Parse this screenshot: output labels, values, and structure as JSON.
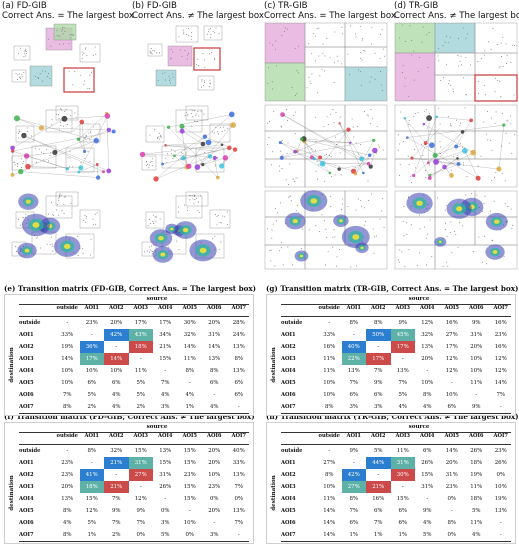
{
  "panels": [
    {
      "title": "(a) FD-GIB",
      "subtitle": "Correct Ans. = The largest box"
    },
    {
      "title": "(b) FD-GIB",
      "subtitle": "Correct Ans. ≠ The largest box"
    },
    {
      "title": "(c) TR-GIB",
      "subtitle": "Correct Ans. = The largest box"
    },
    {
      "title": "(d) TR-GIB",
      "subtitle": "Correct Ans. ≠ The largest box"
    }
  ],
  "matrix_labels": {
    "source": "source",
    "destination": "destination",
    "columns": [
      "outside",
      "AOI1",
      "AOI2",
      "AOI3",
      "AOI4",
      "AOI5",
      "AOI6",
      "AOI7"
    ],
    "rows": [
      "outside",
      "AOI1",
      "AOI2",
      "AOI3",
      "AOI4",
      "AOI5",
      "AOI6",
      "AOI7"
    ]
  },
  "colors": {
    "blue": "#2c7fd0",
    "teal": "#5eb1a6",
    "red": "#cc4a4a",
    "green_box": "#a9d8a3",
    "pink_box": "#e3a6d9",
    "cyan_box": "#97cfd3",
    "red_border": "#c8383d"
  },
  "matrices": [
    {
      "title": "(e) Transition matrix (FD-GIB, Correct Ans. = The largest box)",
      "rows": [
        [
          "-",
          "23%",
          "20%",
          "17%",
          "17%",
          "30%",
          "20%",
          "28%"
        ],
        [
          "33%",
          "-",
          "42%",
          "43%",
          "34%",
          "32%",
          "31%",
          "24%"
        ],
        [
          "19%",
          "36%",
          "-",
          "18%",
          "21%",
          "14%",
          "14%",
          "13%"
        ],
        [
          "14%",
          "17%",
          "14%",
          "-",
          "15%",
          "11%",
          "13%",
          "8%"
        ],
        [
          "10%",
          "10%",
          "10%",
          "11%",
          "-",
          "8%",
          "8%",
          "13%"
        ],
        [
          "10%",
          "6%",
          "6%",
          "5%",
          "7%",
          "-",
          "6%",
          "6%"
        ],
        [
          "7%",
          "5%",
          "4%",
          "5%",
          "4%",
          "4%",
          "-",
          "6%"
        ],
        [
          "8%",
          "2%",
          "4%",
          "2%",
          "3%",
          "1%",
          "4%",
          "-"
        ]
      ],
      "highlights": [
        [
          1,
          2,
          "blue"
        ],
        [
          1,
          3,
          "teal"
        ],
        [
          2,
          1,
          "blue"
        ],
        [
          2,
          3,
          "red"
        ],
        [
          3,
          1,
          "teal"
        ],
        [
          3,
          2,
          "red"
        ]
      ]
    },
    {
      "title": "(g) Transition matrix (TR-GIB, Correct Ans. = The largest box)",
      "rows": [
        [
          "-",
          "8%",
          "8%",
          "9%",
          "12%",
          "16%",
          "9%",
          "16%"
        ],
        [
          "33%",
          "-",
          "50%",
          "45%",
          "32%",
          "27%",
          "31%",
          "23%"
        ],
        [
          "16%",
          "40%",
          "-",
          "17%",
          "13%",
          "17%",
          "20%",
          "16%"
        ],
        [
          "11%",
          "22%",
          "17%",
          "-",
          "20%",
          "12%",
          "10%",
          "12%"
        ],
        [
          "11%",
          "13%",
          "7%",
          "13%",
          "-",
          "12%",
          "10%",
          "12%"
        ],
        [
          "10%",
          "7%",
          "9%",
          "7%",
          "10%",
          "-",
          "11%",
          "14%"
        ],
        [
          "10%",
          "6%",
          "6%",
          "5%",
          "8%",
          "10%",
          "-",
          "7%"
        ],
        [
          "8%",
          "3%",
          "3%",
          "4%",
          "4%",
          "6%",
          "9%",
          "-"
        ]
      ],
      "highlights": [
        [
          1,
          2,
          "blue"
        ],
        [
          1,
          3,
          "teal"
        ],
        [
          2,
          1,
          "blue"
        ],
        [
          2,
          3,
          "red"
        ],
        [
          3,
          1,
          "teal"
        ],
        [
          3,
          2,
          "red"
        ]
      ]
    },
    {
      "title": "(f) Transition matrix (FD-GIB, Correct Ans. ≠ The largest box)",
      "rows": [
        [
          "-",
          "8%",
          "32%",
          "15%",
          "13%",
          "15%",
          "20%",
          "40%"
        ],
        [
          "23%",
          "-",
          "21%",
          "31%",
          "15%",
          "15%",
          "20%",
          "33%"
        ],
        [
          "23%",
          "41%",
          "-",
          "27%",
          "31%",
          "23%",
          "10%",
          "13%"
        ],
        [
          "20%",
          "18%",
          "21%",
          "-",
          "26%",
          "15%",
          "23%",
          "7%"
        ],
        [
          "13%",
          "15%",
          "7%",
          "12%",
          "-",
          "15%",
          "0%",
          "0%"
        ],
        [
          "8%",
          "12%",
          "9%",
          "9%",
          "0%",
          "-",
          "20%",
          "13%"
        ],
        [
          "4%",
          "5%",
          "7%",
          "7%",
          "3%",
          "10%",
          "-",
          "7%"
        ],
        [
          "8%",
          "1%",
          "2%",
          "0%",
          "5%",
          "0%",
          "3%",
          "-"
        ]
      ],
      "highlights": [
        [
          1,
          2,
          "blue"
        ],
        [
          1,
          3,
          "teal"
        ],
        [
          2,
          1,
          "blue"
        ],
        [
          2,
          3,
          "red"
        ],
        [
          3,
          1,
          "teal"
        ],
        [
          3,
          2,
          "red"
        ]
      ]
    },
    {
      "title": "(h) Transition matrix (TR-GIB, Correct Ans. ≠ The largest box)",
      "rows": [
        [
          "-",
          "9%",
          "5%",
          "11%",
          "6%",
          "14%",
          "26%",
          "23%"
        ],
        [
          "27%",
          "-",
          "44%",
          "31%",
          "26%",
          "20%",
          "18%",
          "26%"
        ],
        [
          "8%",
          "42%",
          "-",
          "30%",
          "15%",
          "31%",
          "19%",
          "0%"
        ],
        [
          "10%",
          "27%",
          "21%",
          "-",
          "31%",
          "23%",
          "11%",
          "10%"
        ],
        [
          "11%",
          "8%",
          "16%",
          "15%",
          "-",
          "0%",
          "18%",
          "19%"
        ],
        [
          "14%",
          "7%",
          "6%",
          "6%",
          "9%",
          "-",
          "5%",
          "13%"
        ],
        [
          "14%",
          "6%",
          "7%",
          "6%",
          "4%",
          "8%",
          "11%",
          "-"
        ],
        [
          "14%",
          "1%",
          "1%",
          "1%",
          "5%",
          "0%",
          "4%",
          "-"
        ]
      ],
      "highlights": [
        [
          1,
          2,
          "blue"
        ],
        [
          1,
          3,
          "teal"
        ],
        [
          2,
          1,
          "blue"
        ],
        [
          2,
          3,
          "red"
        ],
        [
          3,
          1,
          "teal"
        ],
        [
          3,
          2,
          "red"
        ]
      ]
    }
  ]
}
